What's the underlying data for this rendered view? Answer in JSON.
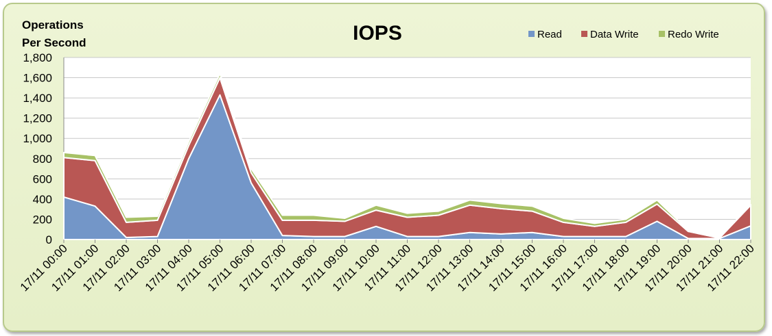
{
  "chart_data": {
    "type": "area",
    "stacked": true,
    "title": "IOPS",
    "ylabel": [
      "Operations",
      "Per Second"
    ],
    "xlabel": "",
    "ylim": [
      0,
      1800
    ],
    "yticks": [
      0,
      200,
      400,
      600,
      800,
      1000,
      1200,
      1400,
      1600,
      1800
    ],
    "ytick_labels": [
      "0",
      "200",
      "400",
      "600",
      "800",
      "1,000",
      "1,200",
      "1,400",
      "1,600",
      "1,800"
    ],
    "grid": true,
    "legend_position": "top-right",
    "categories": [
      "17/11 00:00",
      "17/11 01:00",
      "17/11 02:00",
      "17/11 03:00",
      "17/11 04:00",
      "17/11 05:00",
      "17/11 06:00",
      "17/11 07:00",
      "17/11 08:00",
      "17/11 09:00",
      "17/11 10:00",
      "17/11 11:00",
      "17/11 12:00",
      "17/11 13:00",
      "17/11 14:00",
      "17/11 15:00",
      "17/11 16:00",
      "17/11 17:00",
      "17/11 18:00",
      "17/11 19:00",
      "17/11 20:00",
      "17/11 21:00",
      "17/11 22:00"
    ],
    "series": [
      {
        "name": "Read",
        "color": "#7396c8",
        "values": [
          420,
          330,
          20,
          30,
          800,
          1430,
          560,
          40,
          30,
          30,
          130,
          30,
          30,
          70,
          55,
          70,
          30,
          30,
          30,
          180,
          10,
          10,
          135
        ]
      },
      {
        "name": "Data Write",
        "color": "#b95754",
        "values": [
          390,
          450,
          150,
          160,
          130,
          170,
          100,
          150,
          160,
          150,
          160,
          190,
          210,
          270,
          250,
          210,
          140,
          100,
          140,
          170,
          70,
          5,
          205
        ]
      },
      {
        "name": "Redo Write",
        "color": "#a7c166",
        "values": [
          50,
          50,
          50,
          40,
          40,
          40,
          40,
          50,
          50,
          30,
          50,
          40,
          40,
          50,
          50,
          50,
          40,
          30,
          30,
          40,
          10,
          5,
          5
        ]
      }
    ]
  }
}
